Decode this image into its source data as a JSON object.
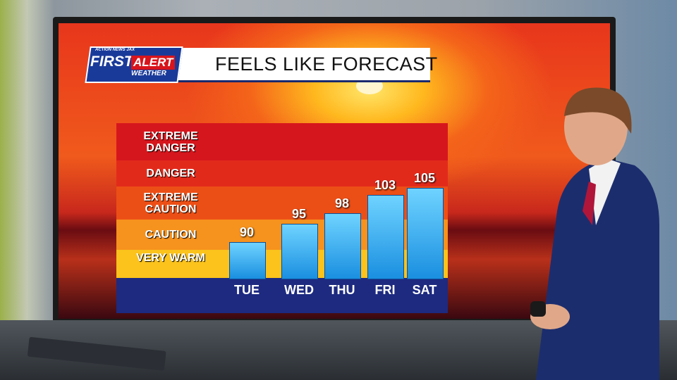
{
  "chart_data": {
    "type": "bar",
    "brand": {
      "network": "ACTION NEWS JAX",
      "name": "FIRST",
      "alert": "ALERT",
      "weather": "WEATHER"
    },
    "title": "FEELS LIKE FORECAST",
    "categories": [
      "TUE",
      "WED",
      "THU",
      "FRI",
      "SAT"
    ],
    "values": [
      90,
      95,
      98,
      103,
      105
    ],
    "color": "#1fa3ea",
    "ylim": [
      80,
      123
    ],
    "zones": [
      "EXTREME DANGER",
      "DANGER",
      "EXTREME CAUTION",
      "CAUTION",
      "VERY WARM"
    ],
    "zone_colors": [
      "#d6161d",
      "#e22a1b",
      "#ec4f16",
      "#f6921e",
      "#fbc31c"
    ]
  }
}
